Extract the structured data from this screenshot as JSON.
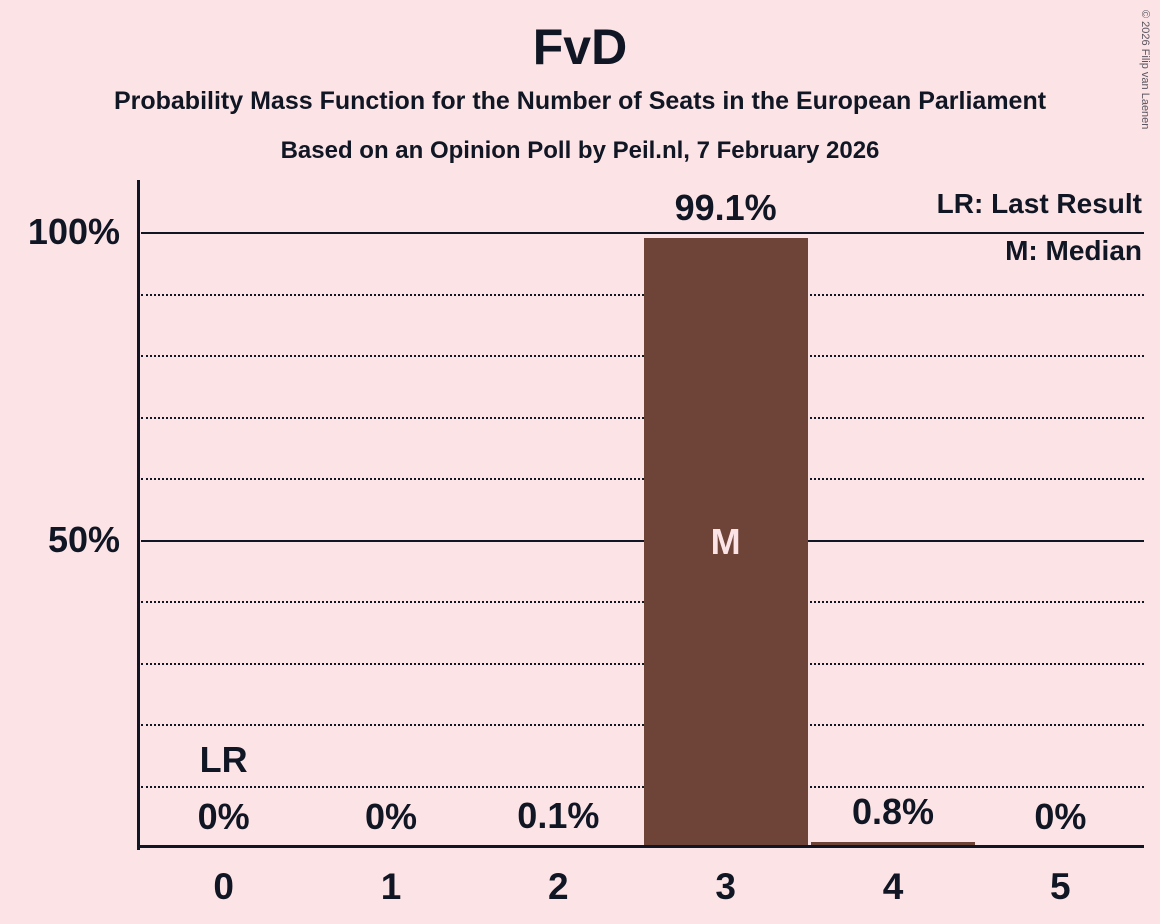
{
  "page": {
    "title": "FvD",
    "subtitle": "Probability Mass Function for the Number of Seats in the European Parliament",
    "poll_line": "Based on an Opinion Poll by Peil.nl, 7 February 2026",
    "copyright": "© 2026 Filip van Laenen"
  },
  "legend": {
    "last_result": "LR: Last Result",
    "median": "M: Median"
  },
  "chart_data": {
    "type": "bar",
    "title": "FvD",
    "categories": [
      "0",
      "1",
      "2",
      "3",
      "4",
      "5"
    ],
    "values": [
      0,
      0,
      0.1,
      99.1,
      0.8,
      0
    ],
    "value_labels": [
      "0%",
      "0%",
      "0.1%",
      "99.1%",
      "0.8%",
      "0%"
    ],
    "ylim": [
      0,
      100
    ],
    "ytick_labels": [
      {
        "value": 100,
        "label": "100%"
      },
      {
        "value": 50,
        "label": "50%"
      }
    ],
    "grid": {
      "step": 10,
      "solid_at": [
        50,
        100
      ]
    },
    "legend_position": "top-right",
    "median": {
      "category": "3",
      "marker": "M"
    },
    "last_result": {
      "category": "0",
      "marker": "LR"
    },
    "colors": {
      "background": "#fce4e6",
      "bar": "#6f4438",
      "text": "#101623",
      "marker_on_bar": "#fce4e6",
      "copyright_text": "#5a5560"
    }
  }
}
